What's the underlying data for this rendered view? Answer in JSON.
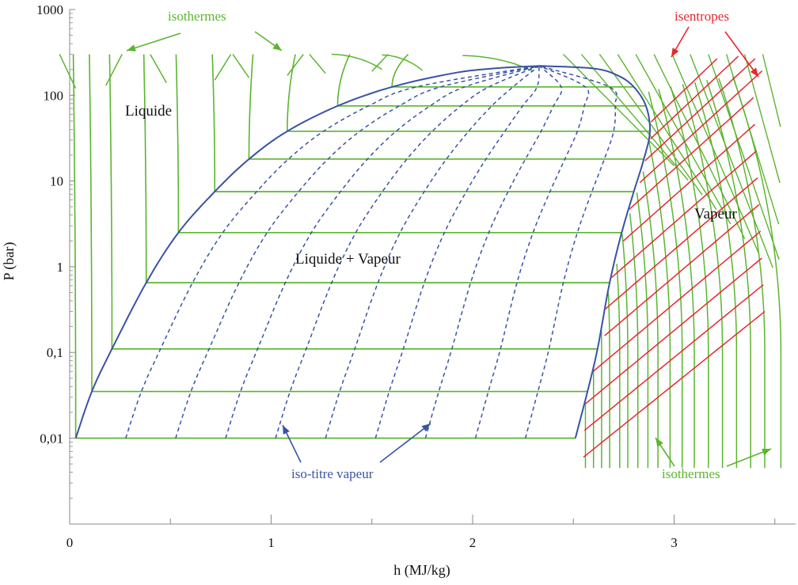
{
  "chart_data": {
    "type": "line",
    "title": "",
    "xlabel": "h (MJ/kg)",
    "ylabel": "P (bar)",
    "y_scale": "log",
    "xlim": [
      0,
      3.6
    ],
    "ylim": [
      0.001,
      1000
    ],
    "x_ticks": [
      "0",
      "1",
      "2",
      "3"
    ],
    "y_ticks": [
      "0,01",
      "0,1",
      "1",
      "10",
      "100",
      "1000"
    ],
    "grid": false,
    "colors": {
      "saturation": "#3953a4",
      "isotherm": "#5bb52e",
      "isentrope": "#e8262d",
      "axis": "#888888"
    },
    "region_labels": [
      {
        "text": "Liquide",
        "h": 0.55,
        "p": 90
      },
      {
        "text": "Liquide + Vapeur",
        "h": 1.3,
        "p": 1.0
      },
      {
        "text": "Vapeur",
        "h": 3.28,
        "p": 3.5
      }
    ],
    "annotations": [
      {
        "text": "isothermes",
        "color": "#5bb52e",
        "anchor": "top-left"
      },
      {
        "text": "isentropes",
        "color": "#e8262d",
        "anchor": "top-right"
      },
      {
        "text": "iso-titre vapeur",
        "color": "#3953a4",
        "anchor": "bottom-center"
      },
      {
        "text": "isothermes",
        "color": "#5bb52e",
        "anchor": "bottom-right"
      }
    ],
    "saturation_dome": {
      "critical_point": {
        "h": 2.33,
        "p": 220
      },
      "liquid_curve": [
        {
          "h": 0.03,
          "p": 0.01
        },
        {
          "h": 0.11,
          "p": 0.035
        },
        {
          "h": 0.21,
          "p": 0.11
        },
        {
          "h": 0.38,
          "p": 0.65
        },
        {
          "h": 0.54,
          "p": 2.5
        },
        {
          "h": 0.72,
          "p": 7.5
        },
        {
          "h": 0.89,
          "p": 18
        },
        {
          "h": 1.08,
          "p": 38
        },
        {
          "h": 1.33,
          "p": 75
        },
        {
          "h": 1.6,
          "p": 125
        },
        {
          "h": 1.9,
          "p": 180
        },
        {
          "h": 2.1,
          "p": 205
        },
        {
          "h": 2.33,
          "p": 220
        }
      ],
      "vapor_curve": [
        {
          "h": 2.33,
          "p": 220
        },
        {
          "h": 2.6,
          "p": 205
        },
        {
          "h": 2.72,
          "p": 170
        },
        {
          "h": 2.8,
          "p": 125
        },
        {
          "h": 2.86,
          "p": 75
        },
        {
          "h": 2.88,
          "p": 38
        },
        {
          "h": 2.85,
          "p": 18
        },
        {
          "h": 2.8,
          "p": 7.5
        },
        {
          "h": 2.74,
          "p": 2.5
        },
        {
          "h": 2.68,
          "p": 0.65
        },
        {
          "h": 2.62,
          "p": 0.11
        },
        {
          "h": 2.57,
          "p": 0.035
        },
        {
          "h": 2.51,
          "p": 0.01
        }
      ]
    },
    "isobar_levels": [
      {
        "p": 0.01,
        "hl": 0.03,
        "hv": 2.51
      },
      {
        "p": 0.035,
        "hl": 0.11,
        "hv": 2.57
      },
      {
        "p": 0.11,
        "hl": 0.21,
        "hv": 2.62
      },
      {
        "p": 0.65,
        "hl": 0.38,
        "hv": 2.68
      },
      {
        "p": 2.5,
        "hl": 0.54,
        "hv": 2.74
      },
      {
        "p": 7.5,
        "hl": 0.72,
        "hv": 2.8
      },
      {
        "p": 18,
        "hl": 0.89,
        "hv": 2.85
      },
      {
        "p": 38,
        "hl": 1.08,
        "hv": 2.88
      },
      {
        "p": 75,
        "hl": 1.33,
        "hv": 2.86
      },
      {
        "p": 125,
        "hl": 1.6,
        "hv": 2.8
      }
    ],
    "iso_titre_x": [
      0.1,
      0.2,
      0.3,
      0.4,
      0.5,
      0.6,
      0.7,
      0.8,
      0.9
    ],
    "liquid_isotherm_h": [
      0.03,
      0.11,
      0.21,
      0.38,
      0.54,
      0.72,
      0.89,
      1.08,
      1.33,
      1.6
    ],
    "vapor_isotherm_h_at_low_p": [
      2.56,
      2.6,
      2.64,
      2.68,
      2.73,
      2.77,
      2.82,
      2.87,
      2.92,
      2.98,
      3.04,
      3.1,
      3.17,
      3.24,
      3.31,
      3.38,
      3.45,
      3.53
    ],
    "isentrope_count": 13
  }
}
